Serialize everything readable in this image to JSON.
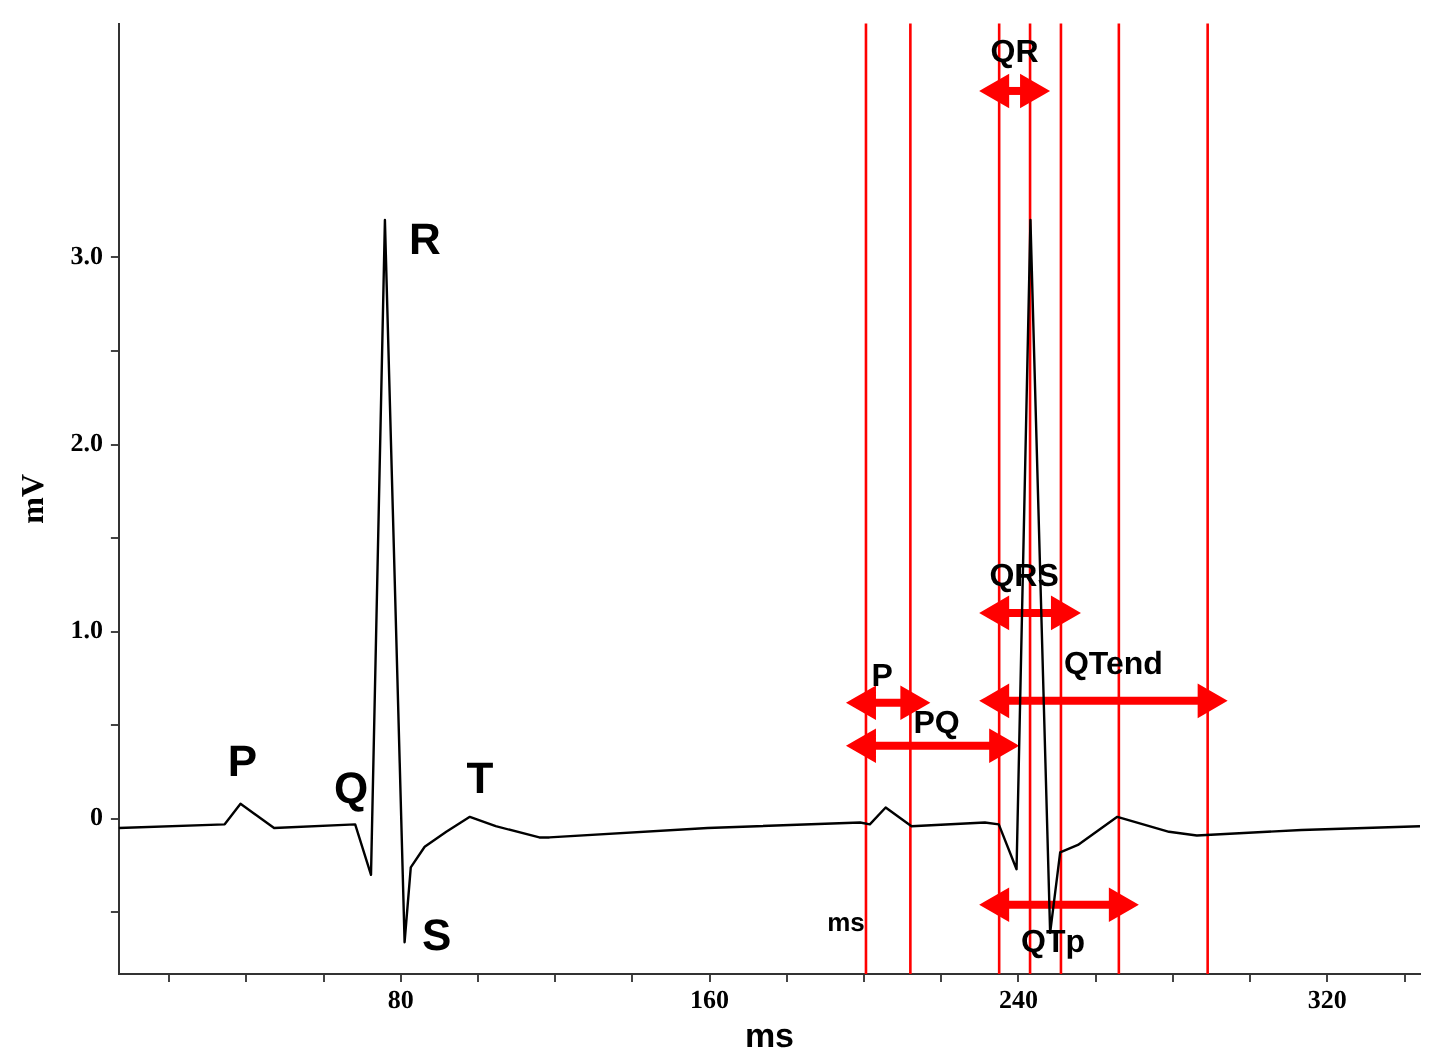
{
  "chart_data": {
    "type": "line",
    "xlabel": "ms",
    "ylabel": "mV",
    "xlim": [
      7,
      344
    ],
    "ylim": [
      -0.83,
      4.25
    ],
    "xticks": [
      {
        "value": 20,
        "label": null
      },
      {
        "value": 40,
        "label": null
      },
      {
        "value": 60,
        "label": null
      },
      80,
      {
        "value": 100,
        "label": null
      },
      {
        "value": 120,
        "label": null
      },
      {
        "value": 140,
        "label": null
      },
      160,
      {
        "value": 180,
        "label": null
      },
      {
        "value": 200,
        "label": null
      },
      {
        "value": 220,
        "label": null
      },
      240,
      {
        "value": 260,
        "label": null
      },
      {
        "value": 280,
        "label": null
      },
      {
        "value": 300,
        "label": null
      },
      320,
      {
        "value": 340,
        "label": null
      }
    ],
    "yticks": [
      {
        "value": -0.5,
        "label": null
      },
      {
        "value": 0,
        "label": "0"
      },
      {
        "value": 0.5,
        "label": null
      },
      {
        "value": 1,
        "label": "1.0"
      },
      {
        "value": 1.5,
        "label": null
      },
      {
        "value": 2,
        "label": "2.0"
      },
      {
        "value": 2.5,
        "label": null
      },
      {
        "value": 3,
        "label": "3.0"
      }
    ],
    "grid": false,
    "legend": false,
    "series": [
      {
        "type": "line",
        "color": "#000000",
        "marker": "none",
        "line_style": "solid",
        "x": [
          7,
          34.4,
          38.5,
          47.2,
          68.2,
          72.3,
          75.9,
          81,
          82.6,
          86.2,
          91.8,
          97.9,
          104.6,
          115.9,
          118.5,
          159.5,
          199,
          201.5,
          205.6,
          212.3,
          231.3,
          234.9,
          239.5,
          243.1,
          248.2,
          250.8,
          255.4,
          265.6,
          279,
          286.2,
          313.3,
          344
        ],
        "values": [
          -0.05,
          -0.03,
          0.08,
          -0.05,
          -0.03,
          -0.3,
          3.2,
          -0.66,
          -0.26,
          -0.15,
          -0.07,
          0.01,
          -0.04,
          -0.1,
          -0.1,
          -0.05,
          -0.02,
          -0.03,
          0.06,
          -0.04,
          -0.02,
          -0.03,
          -0.27,
          3.2,
          -0.61,
          -0.18,
          -0.14,
          0.01,
          -0.07,
          -0.09,
          -0.06,
          -0.04
        ]
      },
      {
        "type": "line",
        "color": "#ff0000",
        "marker": "triangle",
        "line_style": "solid",
        "x": [
          200.5,
          212
        ],
        "values": [
          0.62,
          0.62
        ]
      },
      {
        "type": "line",
        "color": "#ff0000",
        "marker": "triangle",
        "line_style": "solid",
        "x": [
          200.5,
          235
        ],
        "values": [
          0.39,
          0.39
        ]
      },
      {
        "type": "line",
        "color": "#ff0000",
        "marker": "triangle",
        "line_style": "solid",
        "x": [
          235,
          243
        ],
        "values": [
          3.89,
          3.89
        ]
      },
      {
        "type": "line",
        "color": "#ff0000",
        "marker": "triangle",
        "line_style": "solid",
        "x": [
          235,
          251
        ],
        "values": [
          1.1,
          1.1
        ]
      },
      {
        "type": "line",
        "color": "#ff0000",
        "marker": "triangle",
        "line_style": "solid",
        "x": [
          235,
          289
        ],
        "values": [
          0.63,
          0.63
        ]
      },
      {
        "type": "line",
        "color": "#ff0000",
        "marker": "triangle",
        "line_style": "solid",
        "x": [
          235,
          266
        ],
        "values": [
          -0.46,
          -0.46
        ]
      }
    ],
    "ref_lines": [
      {
        "axis": "x",
        "value": 200.5,
        "color": "#ff0000"
      },
      {
        "axis": "x",
        "value": 212,
        "color": "#ff0000"
      },
      {
        "axis": "x",
        "value": 235,
        "color": "#ff0000"
      },
      {
        "axis": "x",
        "value": 243,
        "color": "#ff0000"
      },
      {
        "axis": "x",
        "value": 251,
        "color": "#ff0000"
      },
      {
        "axis": "x",
        "value": 266,
        "color": "#ff0000"
      },
      {
        "axis": "x",
        "value": 289,
        "color": "#ff0000"
      }
    ],
    "annotations": [
      {
        "text": "P",
        "x": 38.5,
        "y": 0.08
      },
      {
        "text": "Q",
        "x": 72.3,
        "y": -0.3
      },
      {
        "text": "R",
        "x": 75.9,
        "y": 3.2
      },
      {
        "text": "S",
        "x": 81,
        "y": -0.66
      },
      {
        "text": "T",
        "x": 97.9,
        "y": 0.01
      },
      {
        "text": "P",
        "x": 206.25,
        "y": 0.62
      },
      {
        "text": "PQ",
        "x": 217.75,
        "y": 0.39
      },
      {
        "text": "QR",
        "x": 239,
        "y": 3.89
      },
      {
        "text": "QRS",
        "x": 243,
        "y": 1.1
      },
      {
        "text": "QTend",
        "x": 262,
        "y": 0.63
      },
      {
        "text": "QTp",
        "x": 250.5,
        "y": -0.46
      },
      "ms"
    ]
  }
}
